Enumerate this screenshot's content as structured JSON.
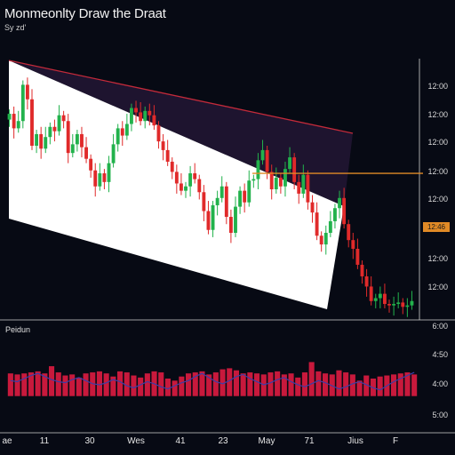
{
  "title": "Monmeonlty Draw the Draat",
  "subtitle": "Sy zd'",
  "price_tag": "12:46",
  "indicator_label": "Peidun",
  "chart_data": [
    {
      "type": "candlestick",
      "title": "Monmeonlty Draw the Draat",
      "yticks": [
        "12:00",
        "12:00",
        "12:00",
        "12:00",
        "12:00",
        "12:46",
        "12:00",
        "12:00"
      ],
      "xticks": [
        "ae",
        "11",
        "30",
        "Wes",
        "41",
        "23",
        "May",
        "71",
        "Jius",
        "F"
      ],
      "close_series": [
        142,
        132,
        137,
        162,
        152,
        120,
        128,
        118,
        126,
        133,
        130,
        141,
        137,
        115,
        121,
        128,
        119,
        111,
        103,
        92,
        101,
        95,
        108,
        121,
        132,
        127,
        135,
        146,
        143,
        137,
        144,
        141,
        134,
        123,
        117,
        109,
        102,
        94,
        89,
        92,
        101,
        97,
        88,
        75,
        62,
        79,
        84,
        92,
        71,
        60,
        78,
        89,
        81,
        96,
        97,
        110,
        117,
        102,
        90,
        98,
        92,
        104,
        112,
        95,
        87,
        100,
        81,
        74,
        58,
        52,
        60,
        68,
        77,
        84,
        66,
        55,
        49,
        38,
        30,
        23,
        13,
        15,
        18,
        11,
        10,
        11,
        12,
        9,
        10,
        13
      ],
      "horizontal_level": 101
    },
    {
      "type": "bar",
      "title": "Peidun",
      "yticks": [
        "6:00",
        "4:50",
        "4:00",
        "5:00"
      ],
      "values": [
        55,
        54,
        55,
        56,
        57,
        55,
        62,
        56,
        53,
        54,
        51,
        55,
        56,
        57,
        55,
        52,
        57,
        56,
        53,
        51,
        55,
        57,
        56,
        50,
        48,
        52,
        55,
        56,
        57,
        54,
        56,
        59,
        60,
        58,
        55,
        56,
        55,
        54,
        56,
        57,
        54,
        55,
        51,
        56,
        66,
        57,
        55,
        54,
        58,
        56,
        54,
        48,
        53,
        50,
        52,
        53,
        54,
        55,
        56,
        54
      ],
      "line": [
        48,
        47,
        50,
        53,
        55,
        52,
        49,
        47,
        46,
        49,
        51,
        48,
        45,
        44,
        46,
        49,
        47,
        43,
        41,
        44,
        47,
        45,
        42,
        40,
        43,
        46,
        48,
        52,
        55,
        51,
        47,
        45,
        48,
        52,
        54,
        50,
        47,
        44,
        46,
        49,
        51,
        47,
        44,
        42,
        45,
        48,
        46,
        43,
        40,
        42,
        45,
        47,
        44,
        41,
        39,
        43,
        47,
        50,
        53,
        56
      ]
    }
  ]
}
